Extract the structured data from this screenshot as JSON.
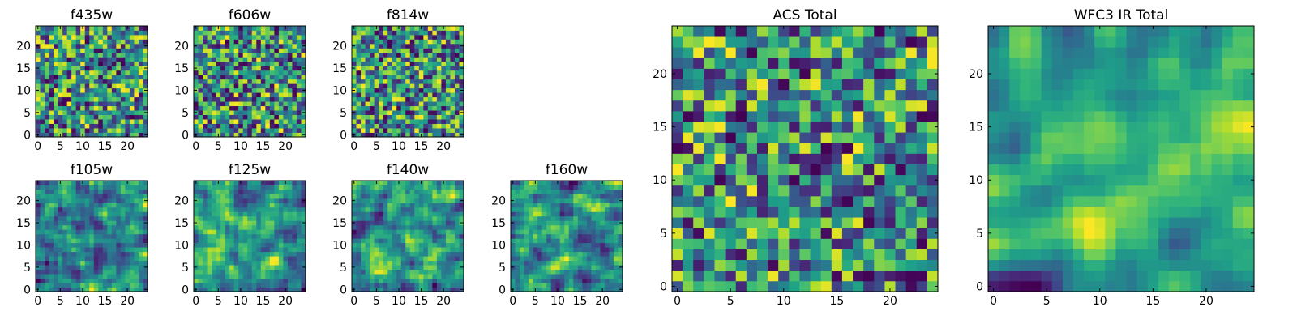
{
  "chart_data": [
    {
      "type": "heatmap",
      "title": "f435w",
      "xlim": [
        0,
        24
      ],
      "ylim": [
        0,
        24
      ],
      "xticks": [
        "0",
        "5",
        "10",
        "15",
        "20"
      ],
      "yticks": [
        "0",
        "5",
        "10",
        "15",
        "20"
      ],
      "size": 25,
      "smoothness": 0,
      "seed": 11,
      "colormap": "viridis"
    },
    {
      "type": "heatmap",
      "title": "f606w",
      "xlim": [
        0,
        24
      ],
      "ylim": [
        0,
        24
      ],
      "xticks": [
        "0",
        "5",
        "10",
        "15",
        "20"
      ],
      "yticks": [
        "0",
        "5",
        "10",
        "15",
        "20"
      ],
      "size": 25,
      "smoothness": 0,
      "seed": 23,
      "colormap": "viridis"
    },
    {
      "type": "heatmap",
      "title": "f814w",
      "xlim": [
        0,
        24
      ],
      "ylim": [
        0,
        24
      ],
      "xticks": [
        "0",
        "5",
        "10",
        "15",
        "20"
      ],
      "yticks": [
        "0",
        "5",
        "10",
        "15",
        "20"
      ],
      "size": 25,
      "smoothness": 0,
      "seed": 37,
      "colormap": "viridis"
    },
    {
      "type": "heatmap",
      "title": "f105w",
      "xlim": [
        0,
        24
      ],
      "ylim": [
        0,
        24
      ],
      "xticks": [
        "0",
        "5",
        "10",
        "15",
        "20"
      ],
      "yticks": [
        "0",
        "5",
        "10",
        "15",
        "20"
      ],
      "size": 25,
      "smoothness": 1,
      "seed": 41,
      "colormap": "viridis"
    },
    {
      "type": "heatmap",
      "title": "f125w",
      "xlim": [
        0,
        24
      ],
      "ylim": [
        0,
        24
      ],
      "xticks": [
        "0",
        "5",
        "10",
        "15",
        "20"
      ],
      "yticks": [
        "0",
        "5",
        "10",
        "15",
        "20"
      ],
      "size": 25,
      "smoothness": 1,
      "seed": 53,
      "colormap": "viridis"
    },
    {
      "type": "heatmap",
      "title": "f140w",
      "xlim": [
        0,
        24
      ],
      "ylim": [
        0,
        24
      ],
      "xticks": [
        "0",
        "5",
        "10",
        "15",
        "20"
      ],
      "yticks": [
        "0",
        "5",
        "10",
        "15",
        "20"
      ],
      "size": 25,
      "smoothness": 1,
      "seed": 67,
      "colormap": "viridis"
    },
    {
      "type": "heatmap",
      "title": "f160w",
      "xlim": [
        0,
        24
      ],
      "ylim": [
        0,
        24
      ],
      "xticks": [
        "0",
        "5",
        "10",
        "15",
        "20"
      ],
      "yticks": [
        "0",
        "5",
        "10",
        "15",
        "20"
      ],
      "size": 25,
      "smoothness": 1,
      "seed": 71,
      "colormap": "viridis"
    },
    {
      "type": "heatmap",
      "title": "ACS Total",
      "xlim": [
        0,
        24
      ],
      "ylim": [
        0,
        24
      ],
      "xticks": [
        "0",
        "5",
        "10",
        "15",
        "20"
      ],
      "yticks": [
        "0",
        "5",
        "10",
        "15",
        "20"
      ],
      "size": 25,
      "smoothness": 0,
      "seed": 83,
      "colormap": "viridis"
    },
    {
      "type": "heatmap",
      "title": "WFC3 IR Total",
      "xlim": [
        0,
        24
      ],
      "ylim": [
        0,
        24
      ],
      "xticks": [
        "0",
        "5",
        "10",
        "15",
        "20"
      ],
      "yticks": [
        "0",
        "5",
        "10",
        "15",
        "20"
      ],
      "size": 25,
      "smoothness": 2,
      "seed": 97,
      "colormap": "viridis"
    }
  ]
}
